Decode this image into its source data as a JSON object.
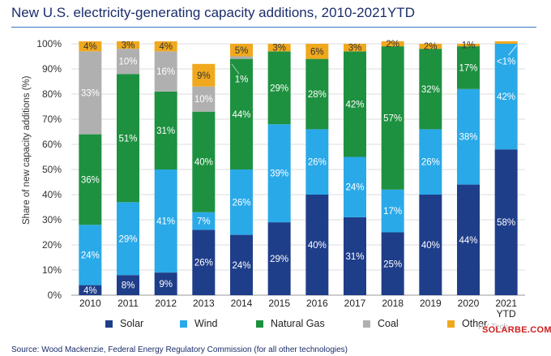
{
  "title": "New U.S. electricity-generating capacity additions, 2010-2021YTD",
  "source": "Source: Wood Mackenzie, Federal Energy Regulatory Commission (for all other technologies)",
  "watermark_faint": "PV Tech",
  "watermark": "SOLARBE.COM",
  "chart_data": {
    "type": "bar",
    "stacked": true,
    "title": "New U.S. electricity-generating capacity additions, 2010-2021YTD",
    "ylabel": "Share of new capacity additions (%)",
    "xlabel": "",
    "ylim": [
      0,
      100
    ],
    "y_ticks": [
      "0%",
      "10%",
      "20%",
      "30%",
      "40%",
      "50%",
      "60%",
      "70%",
      "80%",
      "90%",
      "100%"
    ],
    "categories": [
      "2010",
      "2011",
      "2012",
      "2013",
      "2014",
      "2015",
      "2016",
      "2017",
      "2018",
      "2019",
      "2020",
      "2021 YTD"
    ],
    "legend_position": "bottom",
    "series": [
      {
        "name": "Solar",
        "color": "#1f3e8a",
        "values": [
          4,
          8,
          9,
          26,
          24,
          29,
          40,
          31,
          25,
          40,
          44,
          58
        ],
        "labels": [
          "4%",
          "8%",
          "9%",
          "26%",
          "24%",
          "29%",
          "40%",
          "31%",
          "25%",
          "40%",
          "44%",
          "58%"
        ]
      },
      {
        "name": "Wind",
        "color": "#2aa9e8",
        "values": [
          24,
          29,
          41,
          7,
          26,
          39,
          26,
          24,
          17,
          26,
          38,
          42
        ],
        "labels": [
          "24%",
          "29%",
          "41%",
          "7%",
          "26%",
          "39%",
          "26%",
          "24%",
          "17%",
          "26%",
          "38%",
          "42%"
        ]
      },
      {
        "name": "Natural Gas",
        "color": "#1e9140",
        "values": [
          36,
          51,
          31,
          40,
          44,
          29,
          28,
          42,
          57,
          32,
          17,
          0
        ],
        "labels": [
          "36%",
          "51%",
          "31%",
          "40%",
          "44%",
          "29%",
          "28%",
          "42%",
          "57%",
          "32%",
          "17%",
          ""
        ]
      },
      {
        "name": "Coal",
        "color": "#b0b0b0",
        "values": [
          33,
          10,
          16,
          10,
          1,
          0,
          0,
          0,
          0,
          0,
          0,
          0
        ],
        "labels": [
          "33%",
          "10%",
          "16%",
          "10%",
          "1%",
          "",
          "",
          "",
          "",
          "",
          "",
          ""
        ]
      },
      {
        "name": "Other",
        "color": "#f0a91e",
        "values": [
          4,
          3,
          4,
          9,
          5,
          3,
          6,
          3,
          2,
          2,
          1,
          1
        ],
        "labels": [
          "4%",
          "3%",
          "4%",
          "9%",
          "5%",
          "3%",
          "6%",
          "3%",
          "2%",
          "2%",
          "1%",
          "<1%"
        ]
      }
    ]
  }
}
